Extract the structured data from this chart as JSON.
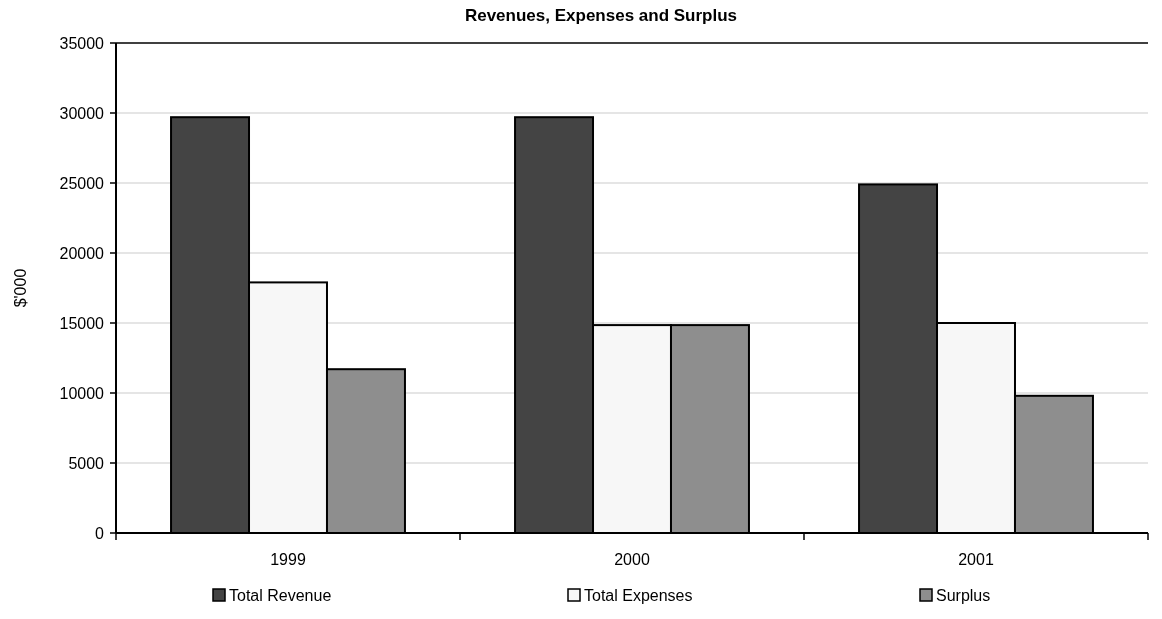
{
  "chart_data": {
    "type": "bar",
    "title": "Revenues, Expenses and Surplus",
    "ylabel": "$'000",
    "categories": [
      "1999",
      "2000",
      "2001"
    ],
    "series": [
      {
        "name": "Total Revenue",
        "color": "#444444",
        "values": [
          29700,
          29700,
          24900
        ]
      },
      {
        "name": "Total Expenses",
        "color": "#f7f7f7",
        "values": [
          17900,
          14850,
          15000
        ]
      },
      {
        "name": "Surplus",
        "color": "#8e8e8e",
        "values": [
          11700,
          14850,
          9800
        ]
      }
    ],
    "ylim": [
      0,
      35000
    ],
    "yticks": [
      0,
      5000,
      10000,
      15000,
      20000,
      25000,
      30000,
      35000
    ],
    "grid": "y",
    "legend": "bottom"
  }
}
